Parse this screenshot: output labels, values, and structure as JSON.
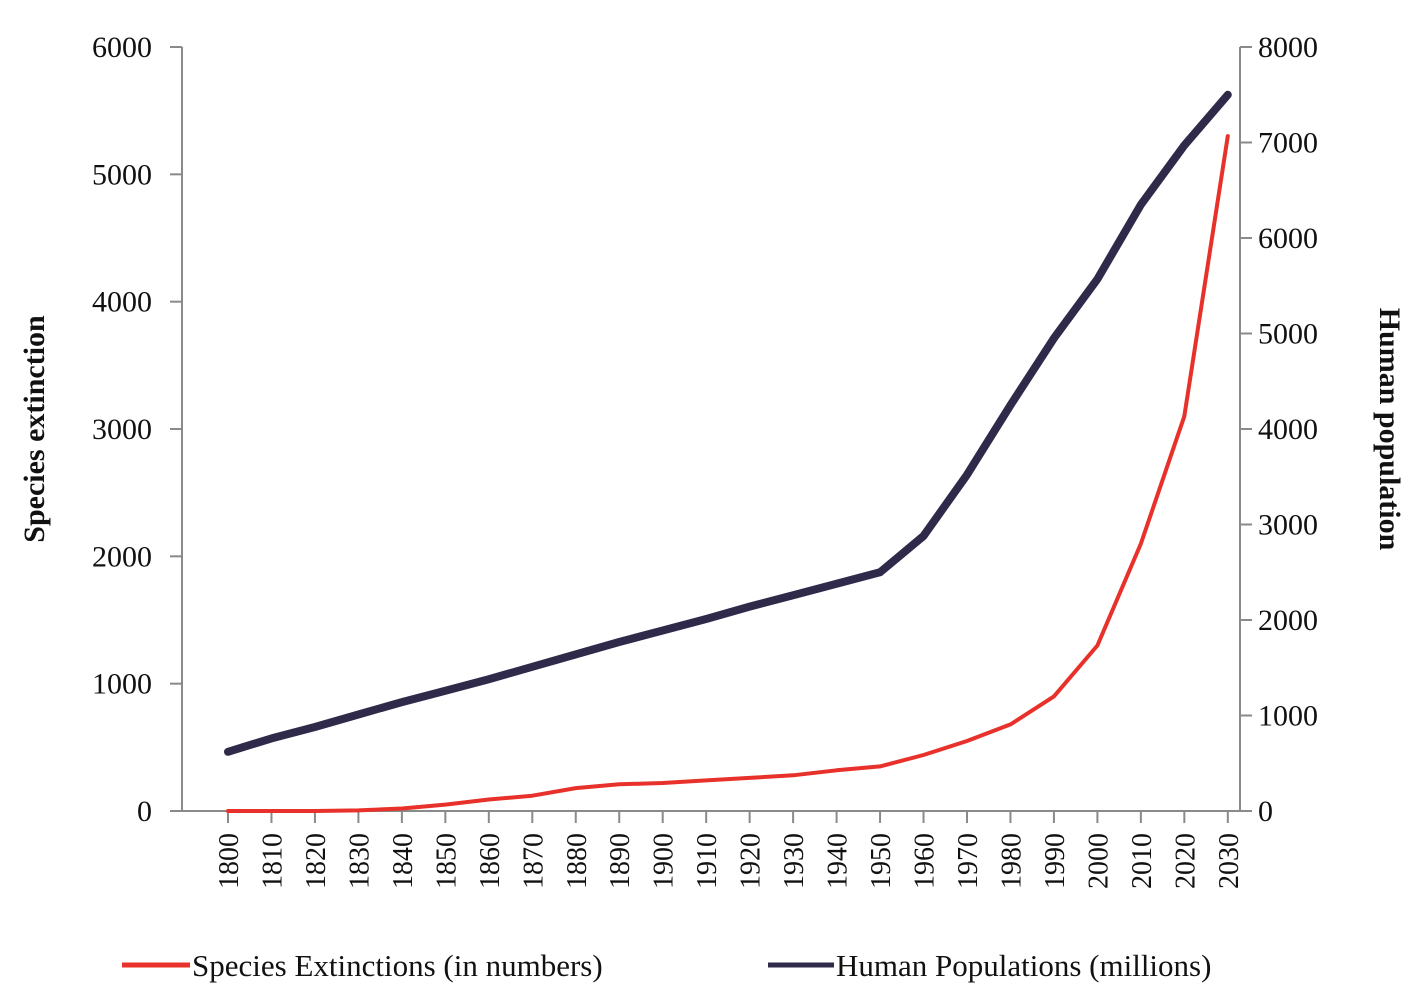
{
  "chart_data": {
    "type": "line",
    "title": "",
    "xlabel": "",
    "ylabel": "Species extinction",
    "ylabel_right": "Human population",
    "x": [
      1800,
      1810,
      1820,
      1830,
      1840,
      1850,
      1860,
      1870,
      1880,
      1890,
      1900,
      1910,
      1920,
      1930,
      1940,
      1950,
      1960,
      1970,
      1980,
      1990,
      2000,
      2010,
      2020,
      2030
    ],
    "x_tick_labels": [
      "1800",
      "1810",
      "1820",
      "1830",
      "1840",
      "1850",
      "1860",
      "1870",
      "1880",
      "1890",
      "1900",
      "1910",
      "1920",
      "1930",
      "1940",
      "1950",
      "1960",
      "1970",
      "1980",
      "1990",
      "2000",
      "2010",
      "2020",
      "2030"
    ],
    "ylim": [
      0,
      6000
    ],
    "y_ticks": [
      "0",
      "1000",
      "2000",
      "3000",
      "4000",
      "5000",
      "6000"
    ],
    "ylim_right": [
      0,
      8000
    ],
    "y_ticks_right": [
      "0",
      "1000",
      "2000",
      "3000",
      "4000",
      "5000",
      "6000",
      "7000",
      "8000"
    ],
    "grid": false,
    "legend_position": "bottom",
    "series": [
      {
        "name": "Species Extinctions (in numbers)",
        "axis": "left",
        "color": "#e8312a",
        "values": [
          0,
          0,
          0,
          5,
          20,
          50,
          90,
          120,
          180,
          210,
          220,
          240,
          260,
          280,
          320,
          350,
          440,
          550,
          680,
          900,
          1300,
          2100,
          3100,
          5300
        ]
      },
      {
        "name": "Human Populations (millions)",
        "axis": "right",
        "color": "#2f2a4a",
        "values": [
          620,
          760,
          880,
          1010,
          1140,
          1260,
          1380,
          1510,
          1640,
          1770,
          1890,
          2010,
          2140,
          2260,
          2380,
          2500,
          2880,
          3520,
          4250,
          4950,
          5570,
          6350,
          6970,
          7500
        ]
      }
    ]
  }
}
